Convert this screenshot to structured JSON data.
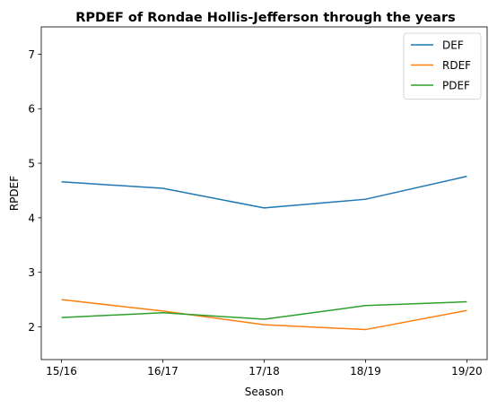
{
  "chart_data": {
    "type": "line",
    "title": "RPDEF of Rondae Hollis-Jefferson through the years",
    "xlabel": "Season",
    "ylabel": "RPDEF",
    "categories": [
      "15/16",
      "16/17",
      "17/18",
      "18/19",
      "19/20"
    ],
    "ylim": [
      1.4,
      7.5
    ],
    "yticks": [
      2,
      3,
      4,
      5,
      6,
      7
    ],
    "grid": false,
    "legend_position": "top-right",
    "series": [
      {
        "name": "DEF",
        "color": "#1f77b4",
        "values": [
          4.66,
          4.54,
          4.18,
          4.34,
          4.76
        ]
      },
      {
        "name": "RDEF",
        "color": "#ff7f0e",
        "values": [
          2.5,
          2.29,
          2.04,
          1.95,
          2.3
        ]
      },
      {
        "name": "PDEF",
        "color": "#2ca02c",
        "values": [
          2.17,
          2.26,
          2.14,
          2.39,
          2.46
        ]
      }
    ]
  }
}
